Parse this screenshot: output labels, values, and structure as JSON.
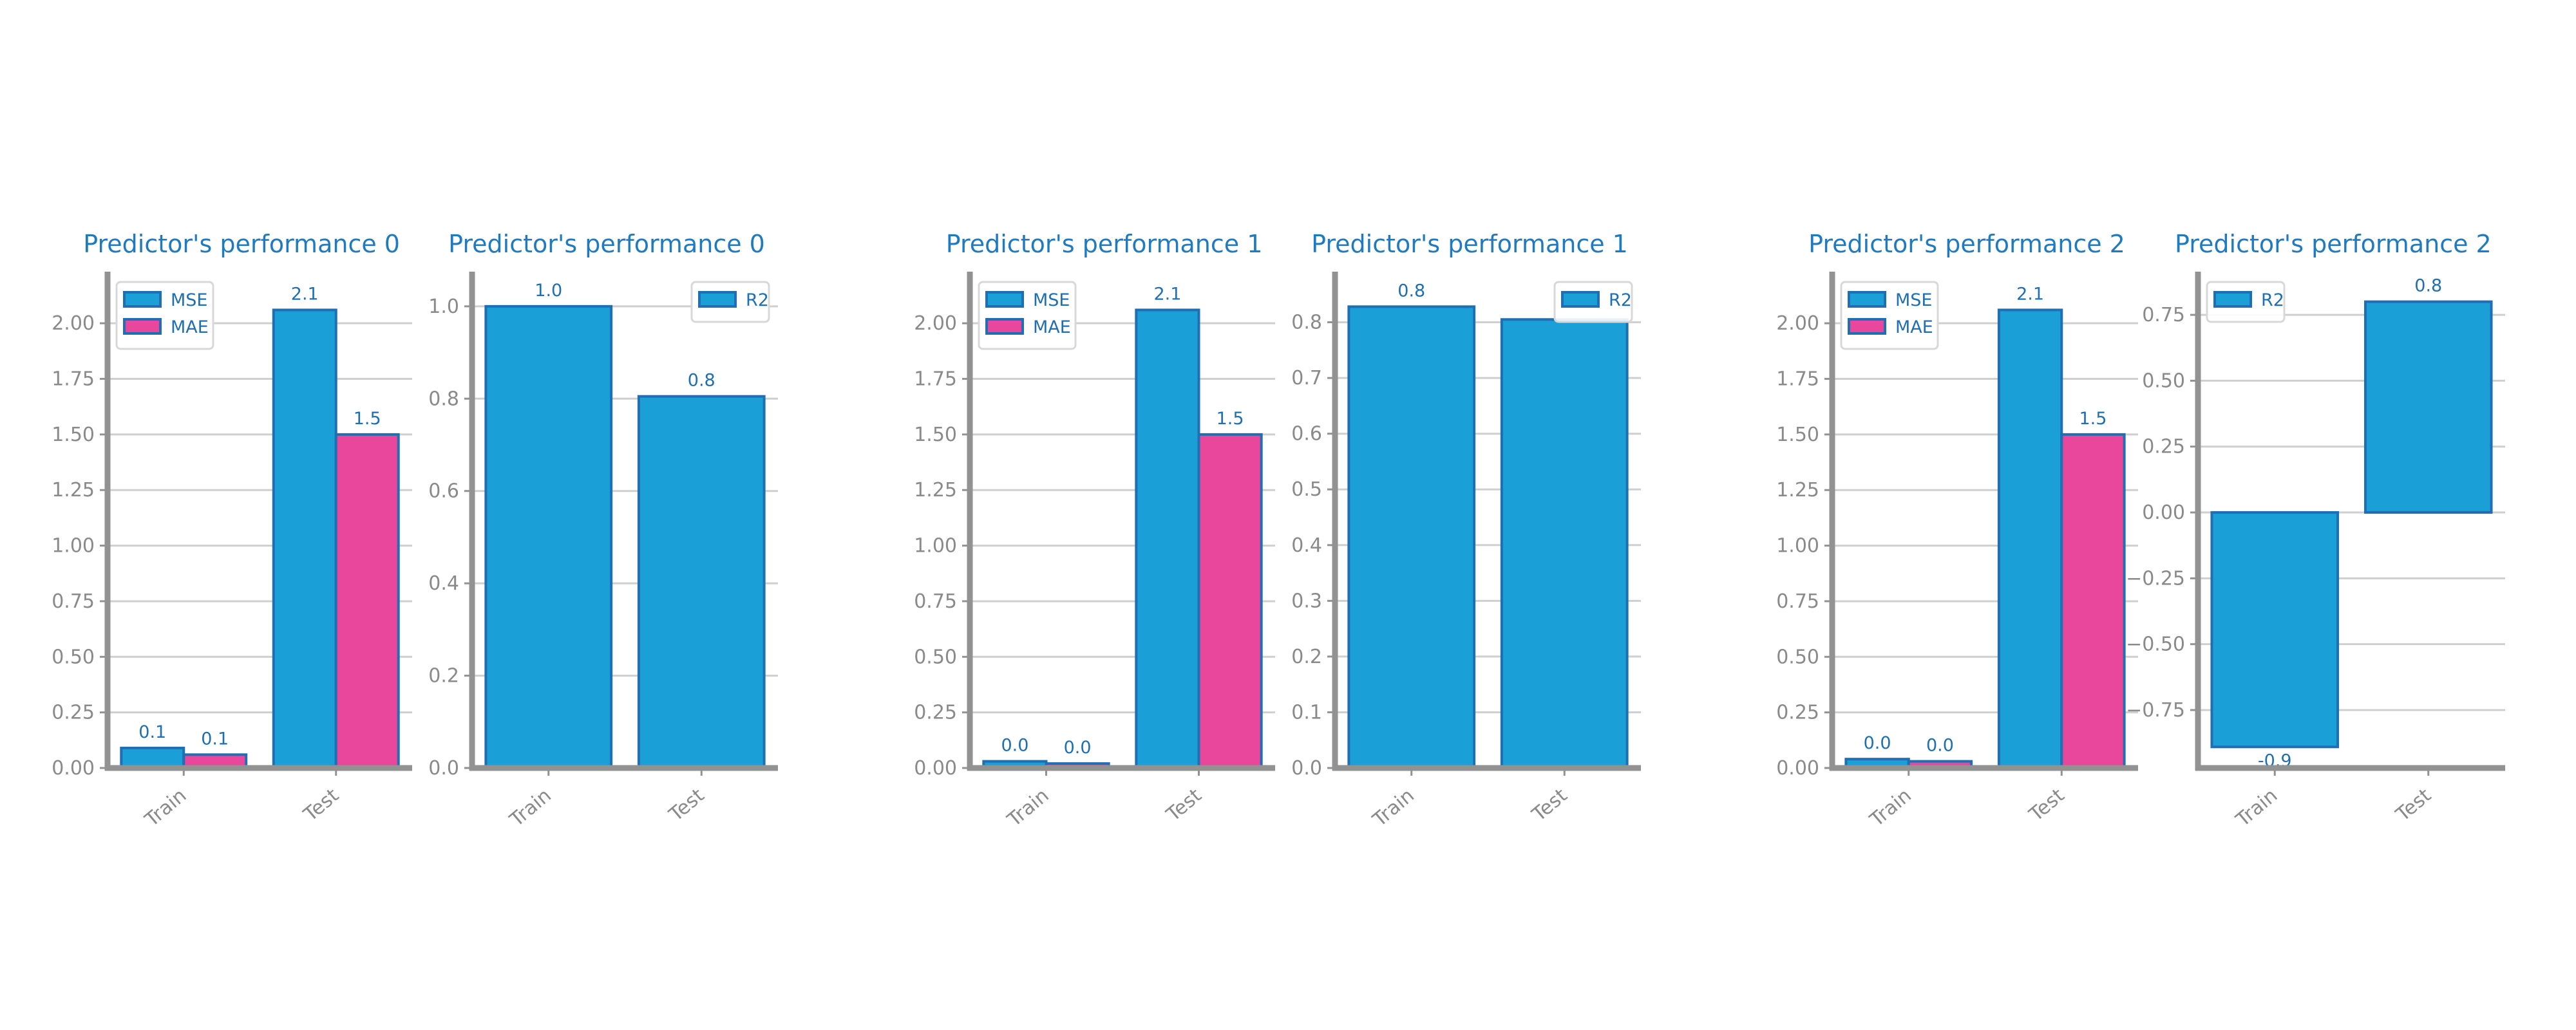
{
  "colors": {
    "blue": "#1a9fd6",
    "pink": "#e8479b",
    "edge": "#1f6fb2",
    "title": "#1f7bc1",
    "tick": "#8a8a8a",
    "axis": "#929292",
    "grid": "#cfcfcf",
    "label": "#1f6fb2"
  },
  "chart_data": [
    {
      "type": "bar",
      "title": "Predictor's performance 0",
      "categories": [
        "Train",
        "Test"
      ],
      "series": [
        {
          "name": "MSE",
          "color": "blue",
          "values": [
            0.09,
            2.06
          ],
          "labels": [
            "0.1",
            "2.1"
          ]
        },
        {
          "name": "MAE",
          "color": "pink",
          "values": [
            0.06,
            1.5
          ],
          "labels": [
            "0.1",
            "1.5"
          ]
        }
      ],
      "ylim": [
        0,
        2.18
      ],
      "yticks": [
        0.0,
        0.25,
        0.5,
        0.75,
        1.0,
        1.25,
        1.5,
        1.75,
        2.0
      ],
      "ytick_labels": [
        "0.00",
        "0.25",
        "0.50",
        "0.75",
        "1.00",
        "1.25",
        "1.50",
        "1.75",
        "2.00"
      ],
      "grid": true,
      "legend": "top-left"
    },
    {
      "type": "bar",
      "title": "Predictor's performance 0",
      "categories": [
        "Train",
        "Test"
      ],
      "series": [
        {
          "name": "R2",
          "color": "blue",
          "values": [
            1.0,
            0.805
          ],
          "labels": [
            "1.0",
            "0.8"
          ]
        }
      ],
      "ylim": [
        0,
        1.05
      ],
      "yticks": [
        0.0,
        0.2,
        0.4,
        0.6,
        0.8,
        1.0
      ],
      "ytick_labels": [
        "0.0",
        "0.2",
        "0.4",
        "0.6",
        "0.8",
        "1.0"
      ],
      "grid": true,
      "legend": "top-right"
    },
    {
      "type": "bar",
      "title": "Predictor's performance 1",
      "categories": [
        "Train",
        "Test"
      ],
      "series": [
        {
          "name": "MSE",
          "color": "blue",
          "values": [
            0.03,
            2.06
          ],
          "labels": [
            "0.0",
            "2.1"
          ]
        },
        {
          "name": "MAE",
          "color": "pink",
          "values": [
            0.02,
            1.5
          ],
          "labels": [
            "0.0",
            "1.5"
          ]
        }
      ],
      "ylim": [
        0,
        2.18
      ],
      "yticks": [
        0.0,
        0.25,
        0.5,
        0.75,
        1.0,
        1.25,
        1.5,
        1.75,
        2.0
      ],
      "ytick_labels": [
        "0.00",
        "0.25",
        "0.50",
        "0.75",
        "1.00",
        "1.25",
        "1.50",
        "1.75",
        "2.00"
      ],
      "grid": true,
      "legend": "top-left"
    },
    {
      "type": "bar",
      "title": "Predictor's performance 1",
      "categories": [
        "Train",
        "Test"
      ],
      "series": [
        {
          "name": "R2",
          "color": "blue",
          "values": [
            0.828,
            0.805
          ],
          "labels": [
            "0.8",
            ""
          ]
        }
      ],
      "ylim": [
        0,
        0.87
      ],
      "yticks": [
        0.0,
        0.1,
        0.2,
        0.3,
        0.4,
        0.5,
        0.6,
        0.7,
        0.8
      ],
      "ytick_labels": [
        "0.0",
        "0.1",
        "0.2",
        "0.3",
        "0.4",
        "0.5",
        "0.6",
        "0.7",
        "0.8"
      ],
      "grid": true,
      "legend": "top-right"
    },
    {
      "type": "bar",
      "title": "Predictor's performance 2",
      "categories": [
        "Train",
        "Test"
      ],
      "series": [
        {
          "name": "MSE",
          "color": "blue",
          "values": [
            0.04,
            2.06
          ],
          "labels": [
            "0.0",
            "2.1"
          ]
        },
        {
          "name": "MAE",
          "color": "pink",
          "values": [
            0.03,
            1.5
          ],
          "labels": [
            "0.0",
            "1.5"
          ]
        }
      ],
      "ylim": [
        0,
        2.18
      ],
      "yticks": [
        0.0,
        0.25,
        0.5,
        0.75,
        1.0,
        1.25,
        1.5,
        1.75,
        2.0
      ],
      "ytick_labels": [
        "0.00",
        "0.25",
        "0.50",
        "0.75",
        "1.00",
        "1.25",
        "1.50",
        "1.75",
        "2.00"
      ],
      "grid": true,
      "legend": "top-left"
    },
    {
      "type": "bar",
      "title": "Predictor's performance 2",
      "categories": [
        "Train",
        "Test"
      ],
      "series": [
        {
          "name": "R2",
          "color": "blue",
          "values": [
            -0.89,
            0.8
          ],
          "labels": [
            "-0.9",
            "0.8"
          ]
        }
      ],
      "ylim": [
        -0.97,
        0.87
      ],
      "yticks": [
        -0.75,
        -0.5,
        -0.25,
        0.0,
        0.25,
        0.5,
        0.75
      ],
      "ytick_labels": [
        "−0.75",
        "−0.50",
        "−0.25",
        "0.00",
        "0.25",
        "0.50",
        "0.75"
      ],
      "grid": true,
      "legend": "top-left"
    }
  ]
}
